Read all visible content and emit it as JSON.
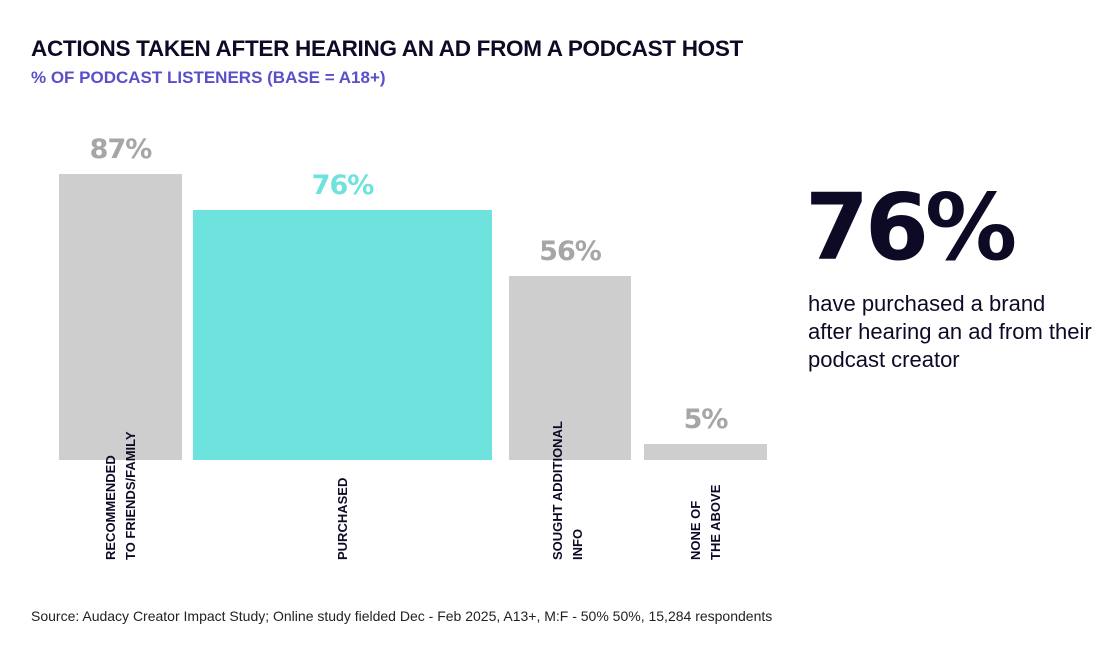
{
  "chart_data": {
    "type": "bar",
    "title": "ACTIONS TAKEN AFTER HEARING AN AD FROM A PODCAST HOST",
    "subtitle": "% OF PODCAST LISTENERS (BASE = A18+)",
    "categories": [
      "RECOMMENDED\nTO FRIENDS/FAMILY",
      "PURCHASED",
      "SOUGHT ADDITIONAL\nINFO",
      "NONE OF\nTHE ABOVE"
    ],
    "values": [
      87,
      76,
      56,
      5
    ],
    "value_labels": [
      "87%",
      "76%",
      "56%",
      "5%"
    ],
    "colors": [
      "#cecece",
      "#6ee2dd",
      "#cecece",
      "#cecece"
    ],
    "label_colors": [
      "#a6a6a6",
      "#6ee2dd",
      "#a6a6a6",
      "#a6a6a6"
    ],
    "highlight": "PURCHASED",
    "ylim": [
      0,
      100
    ],
    "grid": false
  },
  "callout": {
    "value": "76%",
    "text": "have purchased a brand after hearing an ad from their podcast creator"
  },
  "source": "Source: Audacy Creator Impact Study; Online study fielded Dec - Feb 2025, A13+, M:F - 50% 50%, 15,284 respondents"
}
